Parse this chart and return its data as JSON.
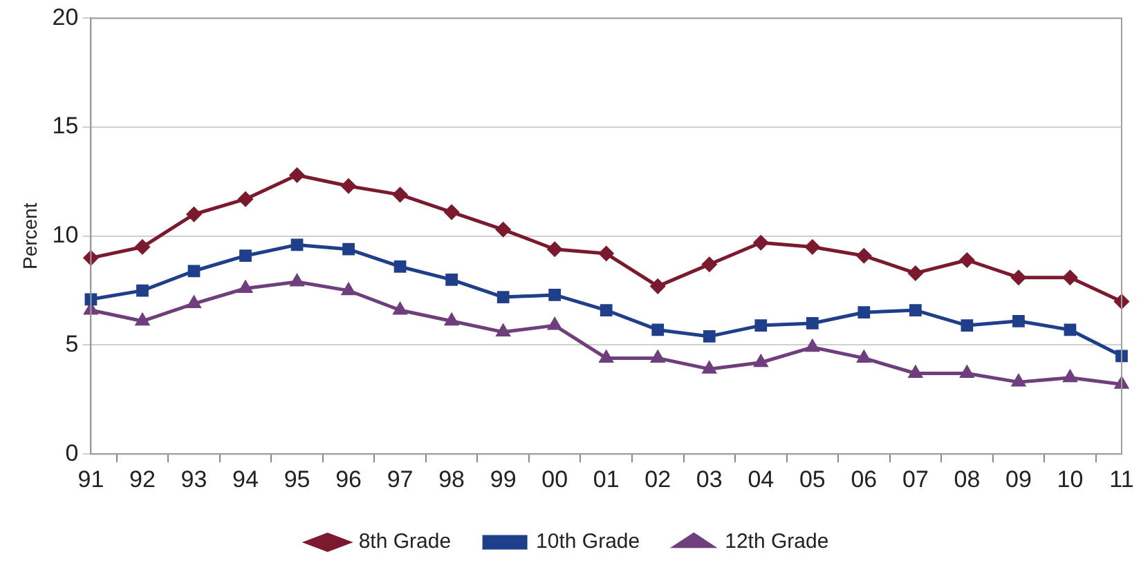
{
  "chart_data": {
    "type": "line",
    "ylabel": "Percent",
    "categories": [
      "91",
      "92",
      "93",
      "94",
      "95",
      "96",
      "97",
      "98",
      "99",
      "00",
      "01",
      "02",
      "03",
      "04",
      "05",
      "06",
      "07",
      "08",
      "09",
      "10",
      "11"
    ],
    "series": [
      {
        "name": "8th Grade",
        "color": "#7b1a2e",
        "marker": "diamond",
        "values": [
          9.0,
          9.5,
          11.0,
          11.7,
          12.8,
          12.3,
          11.9,
          11.1,
          10.3,
          9.4,
          9.2,
          7.7,
          8.7,
          9.7,
          9.5,
          9.1,
          8.3,
          8.9,
          8.1,
          8.1,
          7.0
        ]
      },
      {
        "name": "10th Grade",
        "color": "#1f3f8a",
        "marker": "square",
        "values": [
          7.1,
          7.5,
          8.4,
          9.1,
          9.6,
          9.4,
          8.6,
          8.0,
          7.2,
          7.3,
          6.6,
          5.7,
          5.4,
          5.9,
          6.0,
          6.5,
          6.6,
          5.9,
          6.1,
          5.7,
          4.5
        ]
      },
      {
        "name": "12th Grade",
        "color": "#6e3f7c",
        "marker": "triangle",
        "values": [
          6.6,
          6.1,
          6.9,
          7.6,
          7.9,
          7.5,
          6.6,
          6.1,
          5.6,
          5.9,
          4.4,
          4.4,
          3.9,
          4.2,
          4.9,
          4.4,
          3.7,
          3.7,
          3.3,
          3.5,
          3.2
        ]
      }
    ],
    "ylim": [
      0,
      20
    ],
    "yticks": [
      0,
      5,
      10,
      15,
      20
    ],
    "grid": "y",
    "legend": "bottom",
    "line_style": "solid"
  }
}
